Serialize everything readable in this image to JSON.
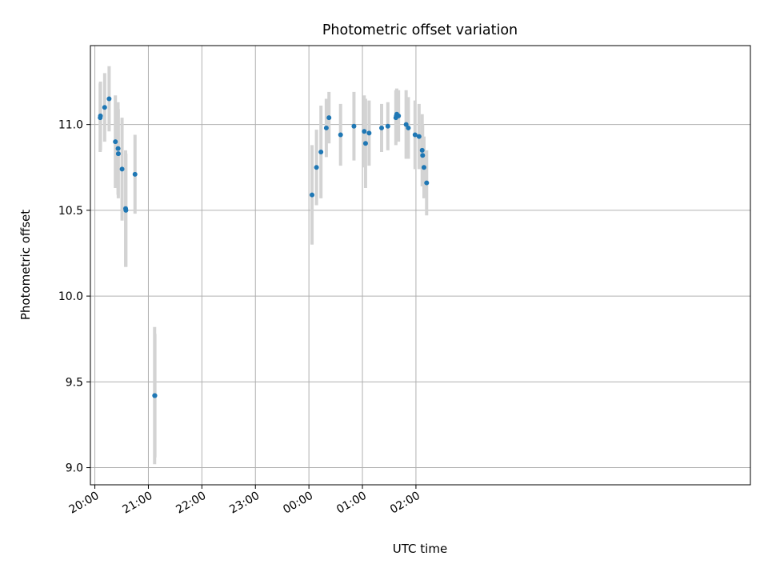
{
  "chart_data": {
    "type": "scatter",
    "title": "Photometric offset variation",
    "xlabel": "UTC time",
    "ylabel": "Photometric offset",
    "x_unit": "minutes after 20:00 UTC",
    "xlim": [
      -5,
      735
    ],
    "ylim": [
      8.9,
      11.46
    ],
    "x_ticks": [
      {
        "value": 0,
        "label": "20:00"
      },
      {
        "value": 60,
        "label": "21:00"
      },
      {
        "value": 120,
        "label": "22:00"
      },
      {
        "value": 180,
        "label": "23:00"
      },
      {
        "value": 240,
        "label": "00:00"
      },
      {
        "value": 300,
        "label": "01:00"
      },
      {
        "value": 360,
        "label": "02:00"
      }
    ],
    "y_ticks": [
      9.0,
      9.5,
      10.0,
      10.5,
      11.0
    ],
    "grid": true,
    "marker_color": "#1f77b4",
    "errorbar_color": "#d3d3d3",
    "points": [
      {
        "x": 6.0,
        "y": 11.04,
        "err": 0.2
      },
      {
        "x": 6.3,
        "y": 11.05,
        "err": 0.2
      },
      {
        "x": 11.0,
        "y": 11.1,
        "err": 0.2
      },
      {
        "x": 16.0,
        "y": 11.15,
        "err": 0.19
      },
      {
        "x": 23.0,
        "y": 10.9,
        "err": 0.27
      },
      {
        "x": 26.0,
        "y": 10.86,
        "err": 0.27
      },
      {
        "x": 26.3,
        "y": 10.83,
        "err": 0.26
      },
      {
        "x": 30.5,
        "y": 10.74,
        "err": 0.3
      },
      {
        "x": 34.5,
        "y": 10.51,
        "err": 0.34
      },
      {
        "x": 34.8,
        "y": 10.5,
        "err": 0.33
      },
      {
        "x": 45.0,
        "y": 10.71,
        "err": 0.23
      },
      {
        "x": 67.0,
        "y": 9.42,
        "err": 0.4
      },
      {
        "x": 67.3,
        "y": 9.42,
        "err": 0.36
      },
      {
        "x": 243.5,
        "y": 10.59,
        "err": 0.29
      },
      {
        "x": 248.5,
        "y": 10.75,
        "err": 0.22
      },
      {
        "x": 253.5,
        "y": 10.84,
        "err": 0.27
      },
      {
        "x": 259.5,
        "y": 10.98,
        "err": 0.17
      },
      {
        "x": 262.5,
        "y": 11.04,
        "err": 0.15
      },
      {
        "x": 275.5,
        "y": 10.94,
        "err": 0.18
      },
      {
        "x": 290.5,
        "y": 10.99,
        "err": 0.2
      },
      {
        "x": 302.0,
        "y": 10.96,
        "err": 0.21
      },
      {
        "x": 303.5,
        "y": 10.89,
        "err": 0.26
      },
      {
        "x": 307.5,
        "y": 10.95,
        "err": 0.19
      },
      {
        "x": 321.5,
        "y": 10.98,
        "err": 0.14
      },
      {
        "x": 328.5,
        "y": 10.99,
        "err": 0.14
      },
      {
        "x": 337.5,
        "y": 11.04,
        "err": 0.16
      },
      {
        "x": 338.0,
        "y": 11.05,
        "err": 0.15
      },
      {
        "x": 338.5,
        "y": 11.06,
        "err": 0.15
      },
      {
        "x": 340.5,
        "y": 11.05,
        "err": 0.15
      },
      {
        "x": 349.0,
        "y": 11.0,
        "err": 0.2
      },
      {
        "x": 351.5,
        "y": 10.98,
        "err": 0.18
      },
      {
        "x": 359.0,
        "y": 10.94,
        "err": 0.2
      },
      {
        "x": 363.5,
        "y": 10.93,
        "err": 0.19
      },
      {
        "x": 367.0,
        "y": 10.85,
        "err": 0.21
      },
      {
        "x": 367.5,
        "y": 10.82,
        "err": 0.18
      },
      {
        "x": 369.0,
        "y": 10.75,
        "err": 0.18
      },
      {
        "x": 372.0,
        "y": 10.66,
        "err": 0.19
      }
    ]
  }
}
